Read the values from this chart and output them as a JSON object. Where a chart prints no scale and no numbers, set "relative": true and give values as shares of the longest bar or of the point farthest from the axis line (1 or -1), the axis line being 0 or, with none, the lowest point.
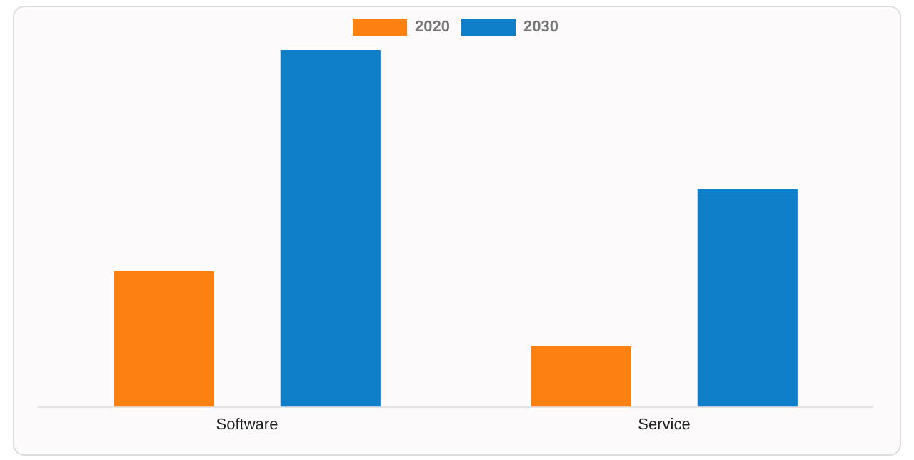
{
  "chart_data": {
    "type": "bar",
    "relative": true,
    "categories": [
      "Software",
      "Service"
    ],
    "series": [
      {
        "name": "2020",
        "color": "#fd8012",
        "values": [
          0.38,
          0.17
        ]
      },
      {
        "name": "2030",
        "color": "#107fc9",
        "values": [
          1,
          0.61
        ]
      }
    ],
    "legend": "top",
    "grid": false
  }
}
